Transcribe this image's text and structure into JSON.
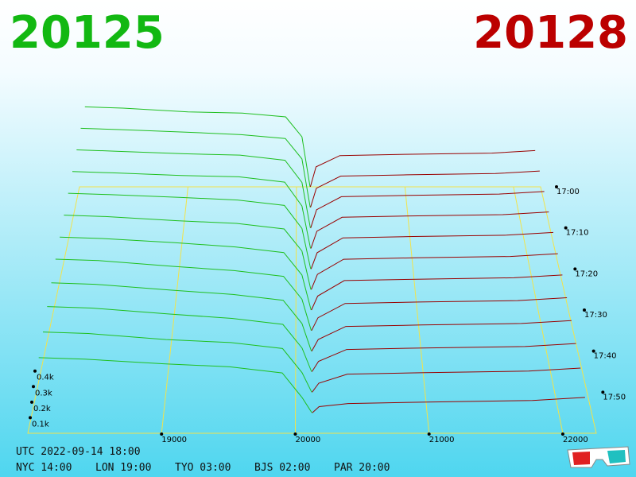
{
  "header": {
    "bid_price": "20125",
    "ask_price": "20128"
  },
  "chart_data": {
    "type": "depth3d",
    "xlim": [
      18000,
      22250
    ],
    "xticks": [
      19000,
      20000,
      21000,
      22000
    ],
    "ylim": [
      0,
      700
    ],
    "yticks": [
      {
        "value": 100,
        "label": "0.1k"
      },
      {
        "value": 200,
        "label": "0.2k"
      },
      {
        "value": 300,
        "label": "0.3k"
      },
      {
        "value": 400,
        "label": "0.4k"
      }
    ],
    "tlim": [
      0,
      60
    ],
    "tticks": [
      {
        "value": 0,
        "label": "17:00"
      },
      {
        "value": 10,
        "label": "17:10"
      },
      {
        "value": 20,
        "label": "17:20"
      },
      {
        "value": 30,
        "label": "17:30"
      },
      {
        "value": 40,
        "label": "17:40"
      },
      {
        "value": 50,
        "label": "17:50"
      }
    ],
    "bid_color": "#1fbf1f",
    "ask_color": "#990000",
    "grid_color": "#f2e34a",
    "bid_prices": [
      18050,
      18400,
      19000,
      19500,
      19900,
      20050,
      20125
    ],
    "ask_prices": [
      20128,
      20180,
      20400,
      21000,
      21800,
      22200
    ],
    "slices": [
      {
        "t": 0,
        "bids": [
          640,
          630,
          600,
          590,
          560,
          400,
          0
        ],
        "asks": [
          0,
          160,
          250,
          260,
          270,
          290
        ]
      },
      {
        "t": 5,
        "bids": [
          620,
          610,
          590,
          570,
          540,
          380,
          0
        ],
        "asks": [
          0,
          150,
          245,
          255,
          265,
          285
        ]
      },
      {
        "t": 10,
        "bids": [
          600,
          590,
          570,
          560,
          520,
          350,
          0
        ],
        "asks": [
          0,
          140,
          240,
          250,
          260,
          280
        ]
      },
      {
        "t": 15,
        "bids": [
          580,
          570,
          550,
          540,
          500,
          320,
          0
        ],
        "asks": [
          0,
          130,
          235,
          245,
          255,
          275
        ]
      },
      {
        "t": 20,
        "bids": [
          560,
          550,
          530,
          510,
          470,
          300,
          0
        ],
        "asks": [
          0,
          120,
          230,
          240,
          250,
          270
        ]
      },
      {
        "t": 25,
        "bids": [
          540,
          530,
          500,
          480,
          440,
          280,
          0
        ],
        "asks": [
          0,
          110,
          220,
          230,
          240,
          260
        ]
      },
      {
        "t": 30,
        "bids": [
          520,
          510,
          480,
          450,
          410,
          250,
          0
        ],
        "asks": [
          0,
          100,
          210,
          220,
          230,
          250
        ]
      },
      {
        "t": 35,
        "bids": [
          500,
          490,
          450,
          420,
          380,
          220,
          0
        ],
        "asks": [
          0,
          90,
          190,
          200,
          210,
          230
        ]
      },
      {
        "t": 40,
        "bids": [
          470,
          460,
          420,
          390,
          350,
          190,
          0
        ],
        "asks": [
          0,
          80,
          170,
          180,
          190,
          210
        ]
      },
      {
        "t": 45,
        "bids": [
          440,
          430,
          390,
          360,
          320,
          160,
          0
        ],
        "asks": [
          0,
          70,
          150,
          160,
          170,
          190
        ]
      },
      {
        "t": 50,
        "bids": [
          400,
          390,
          350,
          330,
          290,
          130,
          0
        ],
        "asks": [
          0,
          60,
          120,
          130,
          140,
          160
        ]
      },
      {
        "t": 55,
        "bids": [
          360,
          350,
          320,
          300,
          260,
          100,
          0
        ],
        "asks": [
          0,
          40,
          60,
          70,
          80,
          100
        ]
      }
    ]
  },
  "footer": {
    "utc": "UTC 2022-09-14 18:00",
    "cities": [
      "NYC 14:00",
      "LON 19:00",
      "TYO 03:00",
      "BJS 02:00",
      "PAR 20:00"
    ]
  }
}
